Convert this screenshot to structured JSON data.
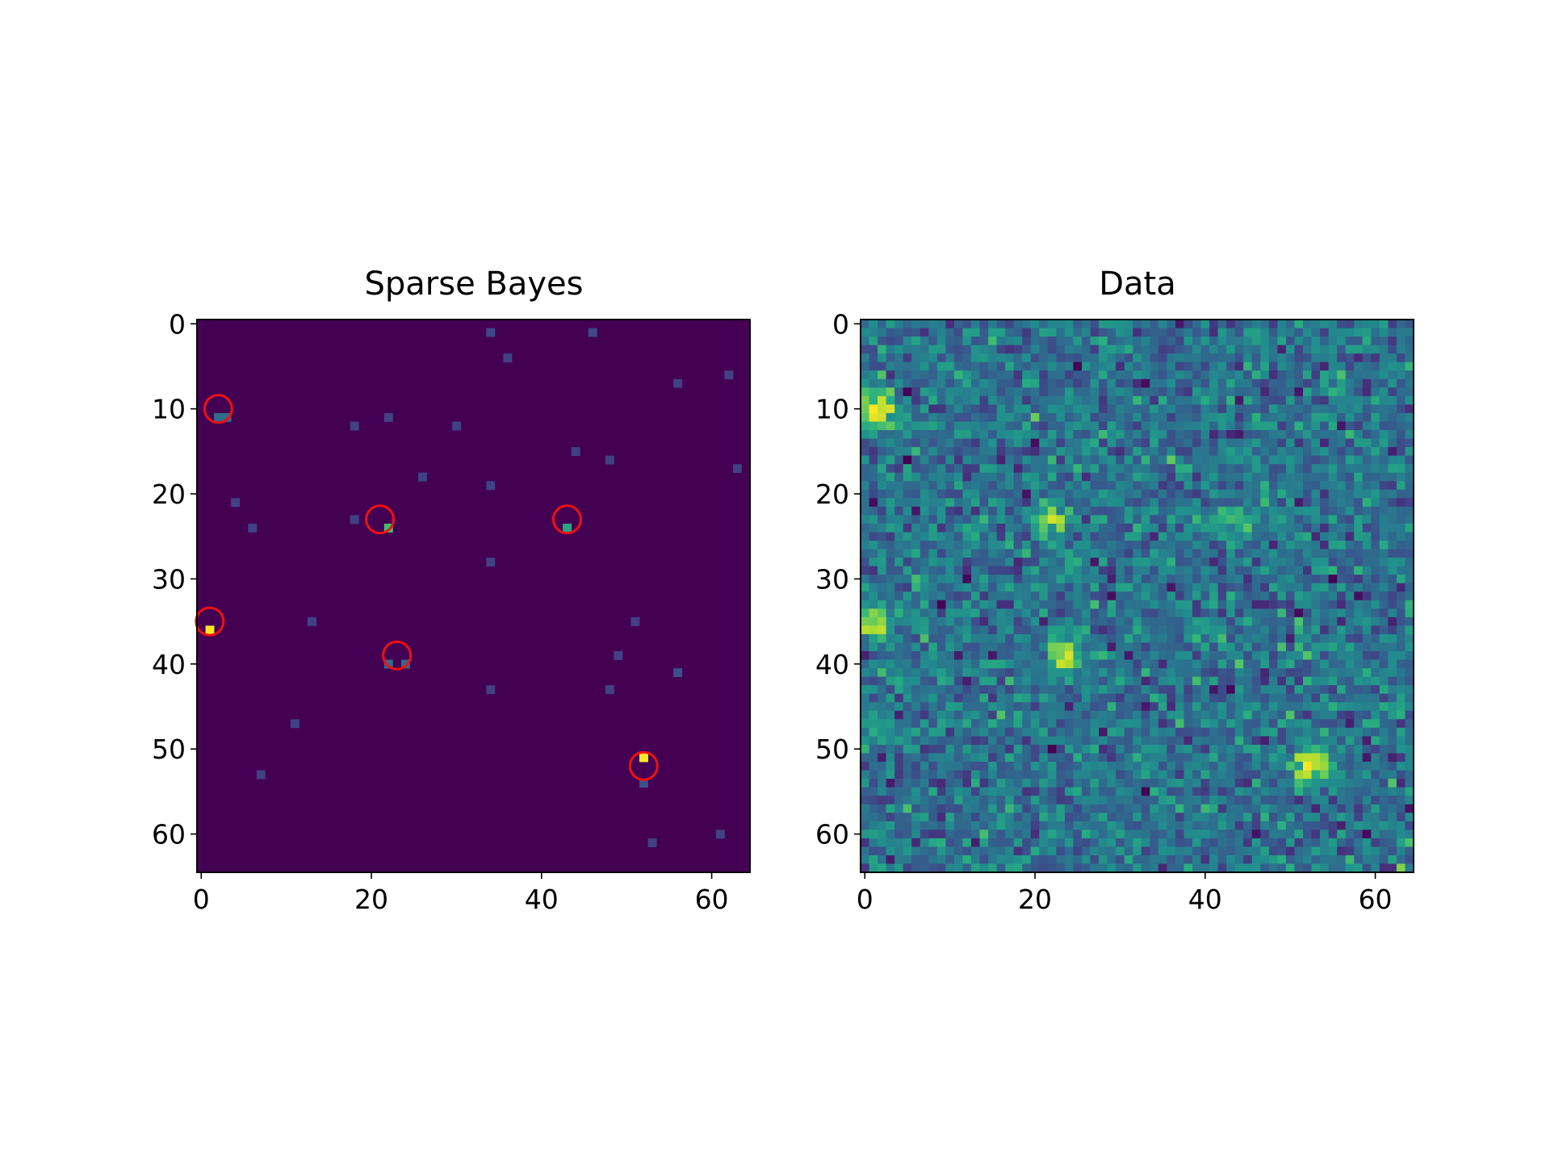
{
  "chart_data": [
    {
      "type": "heatmap",
      "title": "Sparse Bayes",
      "xlabel": "",
      "ylabel": "",
      "shape": [
        65,
        65
      ],
      "xlim": [
        -0.5,
        64.5
      ],
      "ylim": [
        64.5,
        -0.5
      ],
      "x_ticks": [
        0,
        20,
        40,
        60
      ],
      "y_ticks": [
        0,
        10,
        20,
        30,
        40,
        50,
        60
      ],
      "colormap": "viridis",
      "background_value": 0.0,
      "grid": false,
      "nonzero_pixels": [
        {
          "row": 1,
          "col": 34,
          "value": 0.22
        },
        {
          "row": 1,
          "col": 46,
          "value": 0.22
        },
        {
          "row": 4,
          "col": 36,
          "value": 0.2
        },
        {
          "row": 6,
          "col": 62,
          "value": 0.2
        },
        {
          "row": 7,
          "col": 56,
          "value": 0.2
        },
        {
          "row": 11,
          "col": 2,
          "value": 0.35
        },
        {
          "row": 11,
          "col": 3,
          "value": 0.35
        },
        {
          "row": 11,
          "col": 22,
          "value": 0.2
        },
        {
          "row": 12,
          "col": 18,
          "value": 0.2
        },
        {
          "row": 12,
          "col": 30,
          "value": 0.2
        },
        {
          "row": 15,
          "col": 44,
          "value": 0.2
        },
        {
          "row": 16,
          "col": 48,
          "value": 0.2
        },
        {
          "row": 17,
          "col": 63,
          "value": 0.2
        },
        {
          "row": 18,
          "col": 26,
          "value": 0.2
        },
        {
          "row": 19,
          "col": 34,
          "value": 0.2
        },
        {
          "row": 21,
          "col": 4,
          "value": 0.2
        },
        {
          "row": 23,
          "col": 18,
          "value": 0.2
        },
        {
          "row": 24,
          "col": 6,
          "value": 0.2
        },
        {
          "row": 24,
          "col": 22,
          "value": 0.7
        },
        {
          "row": 24,
          "col": 43,
          "value": 0.6
        },
        {
          "row": 28,
          "col": 34,
          "value": 0.2
        },
        {
          "row": 35,
          "col": 13,
          "value": 0.2
        },
        {
          "row": 35,
          "col": 51,
          "value": 0.2
        },
        {
          "row": 36,
          "col": 1,
          "value": 1.0
        },
        {
          "row": 39,
          "col": 49,
          "value": 0.2
        },
        {
          "row": 40,
          "col": 22,
          "value": 0.35
        },
        {
          "row": 40,
          "col": 24,
          "value": 0.35
        },
        {
          "row": 41,
          "col": 56,
          "value": 0.25
        },
        {
          "row": 43,
          "col": 34,
          "value": 0.2
        },
        {
          "row": 43,
          "col": 48,
          "value": 0.2
        },
        {
          "row": 47,
          "col": 11,
          "value": 0.2
        },
        {
          "row": 51,
          "col": 52,
          "value": 1.0
        },
        {
          "row": 53,
          "col": 7,
          "value": 0.2
        },
        {
          "row": 54,
          "col": 52,
          "value": 0.25
        },
        {
          "row": 60,
          "col": 61,
          "value": 0.2
        },
        {
          "row": 61,
          "col": 53,
          "value": 0.2
        }
      ],
      "circle_markers": [
        {
          "x": 2,
          "y": 10
        },
        {
          "x": 21,
          "y": 23
        },
        {
          "x": 43,
          "y": 23
        },
        {
          "x": 1,
          "y": 35
        },
        {
          "x": 23,
          "y": 39
        },
        {
          "x": 52,
          "y": 52
        }
      ],
      "marker_color": "#ee1111"
    },
    {
      "type": "heatmap",
      "title": "Data",
      "xlabel": "",
      "ylabel": "",
      "shape": [
        65,
        65
      ],
      "xlim": [
        -0.5,
        64.5
      ],
      "ylim": [
        64.5,
        -0.5
      ],
      "x_ticks": [
        0,
        20,
        40,
        60
      ],
      "y_ticks": [
        0,
        10,
        20,
        30,
        40,
        50,
        60
      ],
      "colormap": "viridis",
      "grid": false,
      "noise": {
        "mean": 0.38,
        "sd": 0.12
      },
      "sources": [
        {
          "x": 1.5,
          "y": 10.5,
          "amplitude": 0.6,
          "sigma": 1.6
        },
        {
          "x": 21.5,
          "y": 23.0,
          "amplitude": 0.42,
          "sigma": 1.5
        },
        {
          "x": 43.5,
          "y": 23.0,
          "amplitude": 0.3,
          "sigma": 1.5
        },
        {
          "x": 1.0,
          "y": 35.0,
          "amplitude": 0.52,
          "sigma": 1.5
        },
        {
          "x": 23.5,
          "y": 39.0,
          "amplitude": 0.5,
          "sigma": 1.5
        },
        {
          "x": 52.5,
          "y": 52.0,
          "amplitude": 0.62,
          "sigma": 1.6
        }
      ]
    }
  ]
}
